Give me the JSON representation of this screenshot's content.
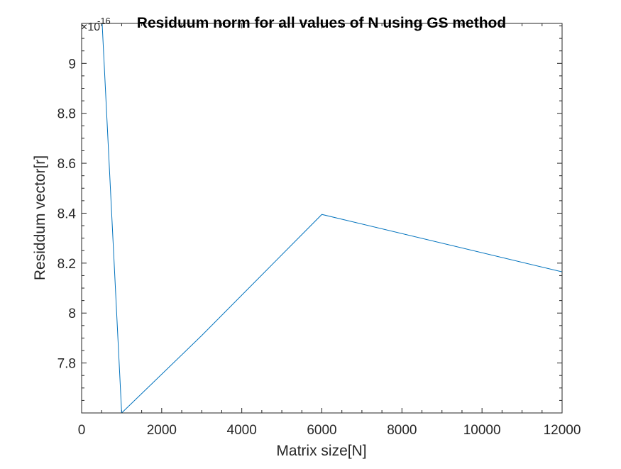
{
  "chart_data": {
    "type": "line",
    "title": "Residuum norm for all values of N using GS method",
    "xlabel": "Matrix size[N]",
    "ylabel": "Residdum vector[r]",
    "y_exponent_base": "×10",
    "y_exponent_power": "-16",
    "xlim": [
      0,
      12000
    ],
    "ylim": [
      7.6,
      9.16
    ],
    "xticks": [
      0,
      2000,
      4000,
      6000,
      8000,
      10000,
      12000
    ],
    "xtick_labels": [
      "0",
      "2000",
      "4000",
      "6000",
      "8000",
      "10000",
      "12000"
    ],
    "yticks": [
      7.8,
      8.0,
      8.2,
      8.4,
      8.6,
      8.8,
      9.0
    ],
    "ytick_labels": [
      "7.8",
      "8",
      "8.2",
      "8.4",
      "8.6",
      "8.8",
      "9"
    ],
    "grid": false,
    "box": true,
    "series": [
      {
        "color": "#0072BD",
        "x": [
          500,
          1000,
          3000,
          6000,
          12000
        ],
        "y": [
          9.2,
          7.6,
          7.91,
          8.395,
          8.165
        ]
      }
    ]
  }
}
